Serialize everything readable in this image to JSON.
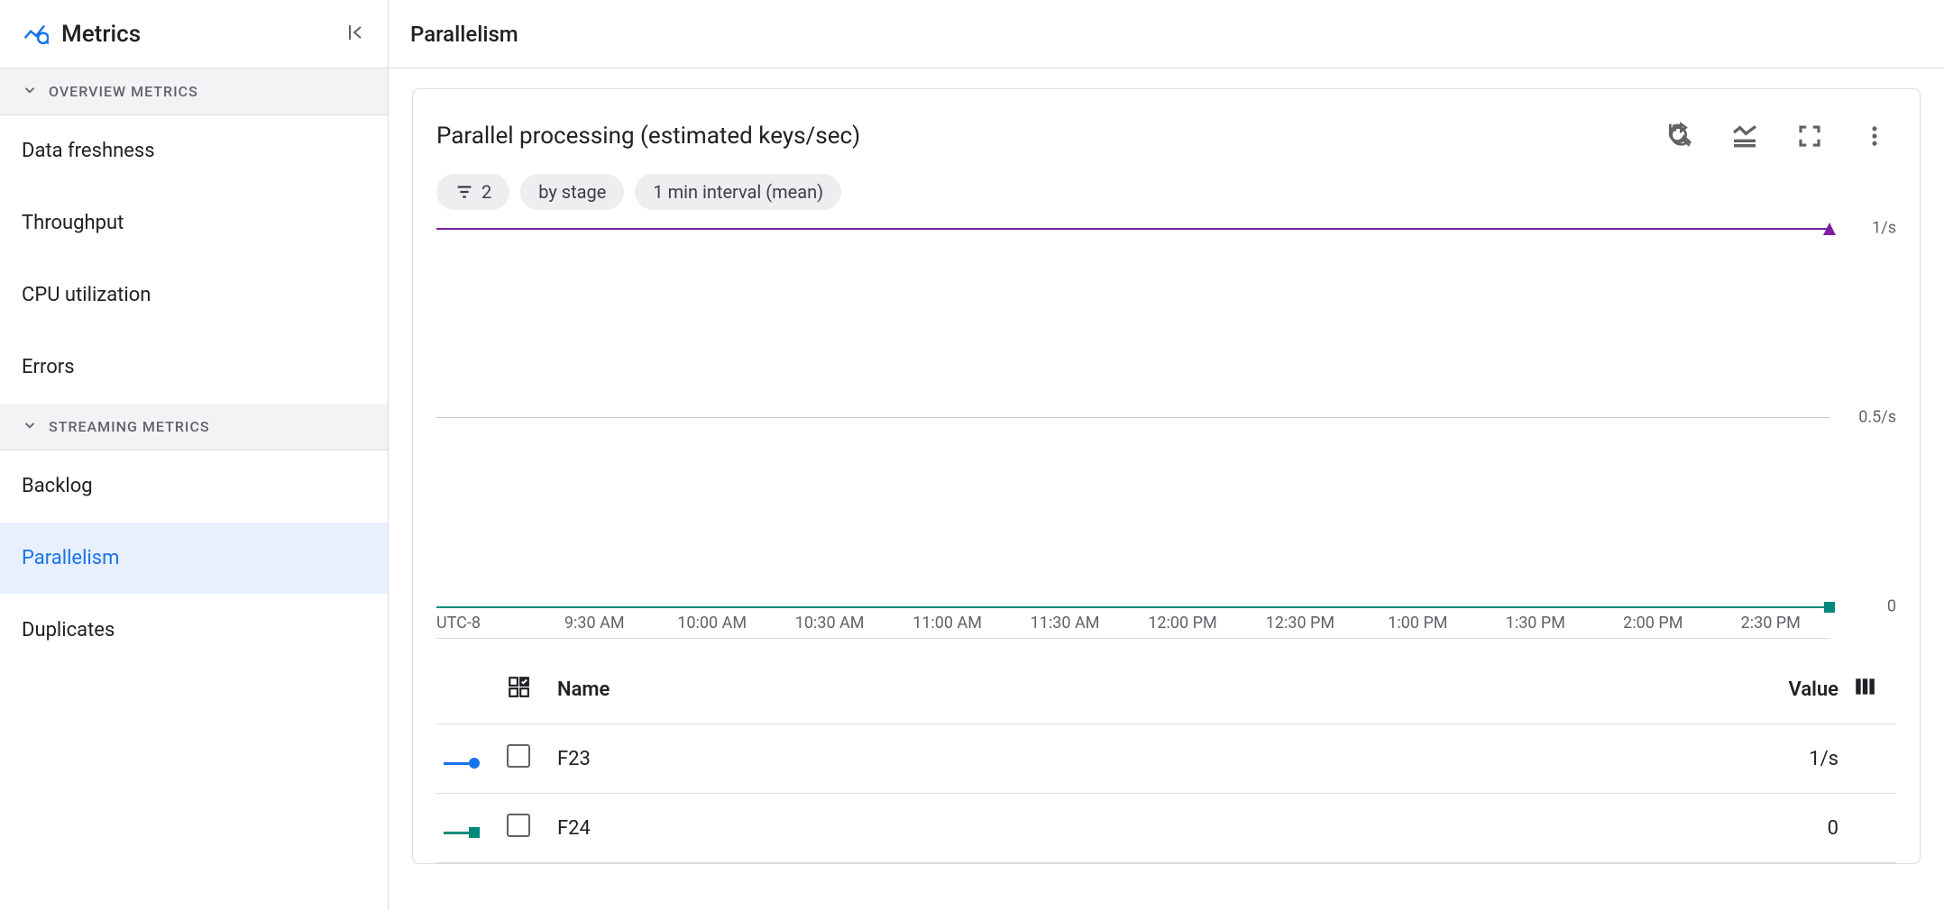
{
  "sidebar": {
    "title": "Metrics",
    "sections": [
      {
        "label": "OVERVIEW METRICS",
        "items": [
          "Data freshness",
          "Throughput",
          "CPU utilization",
          "Errors"
        ]
      },
      {
        "label": "STREAMING METRICS",
        "items": [
          "Backlog",
          "Parallelism",
          "Duplicates"
        ]
      }
    ],
    "active_item": "Parallelism"
  },
  "main": {
    "page_title": "Parallelism",
    "card": {
      "title": "Parallel processing (estimated keys/sec)",
      "chips": {
        "filter_count": "2",
        "group_by": "by stage",
        "interval": "1 min interval (mean)"
      },
      "chart": {
        "type": "line",
        "timezone_label": "UTC-8",
        "x_ticks": [
          "9:30 AM",
          "10:00 AM",
          "10:30 AM",
          "11:00 AM",
          "11:30 AM",
          "12:00 PM",
          "12:30 PM",
          "1:00 PM",
          "1:30 PM",
          "2:00 PM",
          "2:30 PM"
        ],
        "y_ticks": [
          {
            "label": "1/s",
            "pos_pct": 0
          },
          {
            "label": "0.5/s",
            "pos_pct": 50
          },
          {
            "label": "0",
            "pos_pct": 100
          }
        ],
        "ylim": [
          0,
          1
        ],
        "gridline_color": "#c7c9cb",
        "background_color": "#ffffff",
        "series": [
          {
            "name": "F23",
            "color": "#7b1fa2",
            "marker": "triangle",
            "constant_value": 1,
            "display_value": "1/s"
          },
          {
            "name": "F24",
            "color": "#00897b",
            "marker": "square",
            "constant_value": 0,
            "display_value": "0"
          }
        ]
      },
      "legend": {
        "name_header": "Name",
        "value_header": "Value"
      }
    }
  }
}
